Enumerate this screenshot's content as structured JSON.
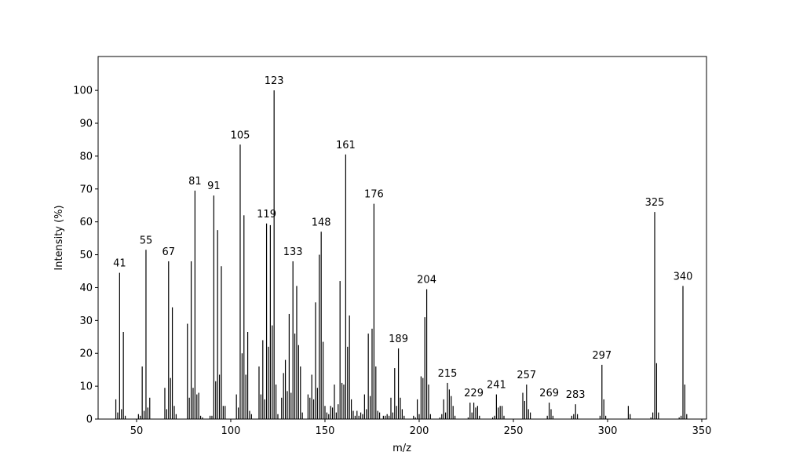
{
  "chart_data": {
    "type": "bar",
    "x_label": "m/z",
    "y_label": "Intensity (%)",
    "color": "#000000",
    "x": [
      39,
      40,
      41,
      42,
      43,
      44,
      51,
      52,
      53,
      54,
      55,
      56,
      57,
      65,
      66,
      67,
      68,
      69,
      70,
      71,
      77,
      78,
      79,
      80,
      81,
      82,
      83,
      84,
      85,
      89,
      90,
      91,
      92,
      93,
      94,
      95,
      96,
      97,
      103,
      104,
      105,
      106,
      107,
      108,
      109,
      110,
      111,
      115,
      116,
      117,
      118,
      119,
      120,
      121,
      122,
      123,
      124,
      125,
      127,
      128,
      129,
      130,
      131,
      132,
      133,
      134,
      135,
      136,
      137,
      138,
      141,
      142,
      143,
      144,
      145,
      146,
      147,
      148,
      149,
      150,
      151,
      152,
      153,
      154,
      155,
      156,
      157,
      158,
      159,
      160,
      161,
      162,
      163,
      164,
      165,
      166,
      167,
      168,
      169,
      170,
      171,
      172,
      173,
      174,
      175,
      176,
      177,
      178,
      179,
      181,
      182,
      183,
      184,
      185,
      186,
      187,
      188,
      189,
      190,
      191,
      192,
      197,
      198,
      199,
      200,
      201,
      202,
      203,
      204,
      205,
      206,
      211,
      212,
      213,
      214,
      215,
      216,
      217,
      218,
      219,
      226,
      227,
      228,
      229,
      230,
      231,
      232,
      239,
      240,
      241,
      242,
      243,
      244,
      245,
      255,
      256,
      257,
      258,
      259,
      268,
      269,
      270,
      271,
      281,
      282,
      283,
      284,
      296,
      297,
      298,
      299,
      311,
      312,
      323,
      324,
      325,
      326,
      327,
      338,
      339,
      340,
      341,
      342
    ],
    "values": [
      6,
      2,
      44.5,
      3,
      26.5,
      1,
      1.5,
      1,
      16,
      2.5,
      51.5,
      3.5,
      6.5,
      9.5,
      3,
      48,
      12.5,
      34,
      4,
      1.5,
      29,
      6.5,
      48,
      9.5,
      69.5,
      7.5,
      8,
      1,
      0.5,
      1,
      1,
      68,
      11.5,
      57.5,
      13.5,
      46.5,
      4,
      4,
      7.5,
      3.5,
      83.5,
      20,
      62,
      13.5,
      26.5,
      2.5,
      1.5,
      16,
      7.5,
      24,
      6,
      59.5,
      22,
      59,
      28.5,
      100,
      10.5,
      1.5,
      6.5,
      14,
      18,
      8.5,
      32,
      8,
      48,
      26,
      40.5,
      22.5,
      16,
      2,
      7.5,
      6.5,
      13.5,
      6,
      35.5,
      9.5,
      50,
      57,
      23.5,
      4,
      2,
      1.5,
      4,
      3.5,
      10.5,
      2,
      4.5,
      42,
      11,
      10.5,
      80.5,
      22,
      31.5,
      6,
      2.5,
      1,
      2.5,
      1,
      2,
      1.5,
      7.5,
      3,
      26,
      7,
      27.5,
      65.5,
      16,
      2.5,
      2,
      1,
      1,
      1.5,
      1,
      6.5,
      2,
      15.5,
      4,
      21.5,
      6.5,
      3,
      1,
      1,
      0.5,
      6,
      1.5,
      13,
      12.5,
      31,
      39.5,
      10.5,
      1.5,
      0.5,
      1.5,
      6,
      2,
      11,
      9,
      7,
      4,
      1,
      0.5,
      5,
      2,
      5,
      3.5,
      4,
      1,
      0.5,
      1,
      7.5,
      3.5,
      4,
      4,
      1,
      8,
      5.5,
      10.5,
      3,
      2,
      1,
      5,
      3,
      1,
      1,
      1.5,
      4.5,
      1.5,
      1,
      16.5,
      6,
      1,
      4,
      1.5,
      0.5,
      2,
      63,
      17,
      2,
      0.5,
      1,
      40.5,
      10.5,
      1.5
    ],
    "peak_labels": [
      41,
      55,
      67,
      81,
      91,
      105,
      119,
      123,
      133,
      148,
      161,
      176,
      189,
      204,
      215,
      229,
      241,
      257,
      269,
      283,
      297,
      325,
      340
    ],
    "xlim": [
      29.6,
      352.5
    ],
    "ylim": [
      0,
      110.3
    ],
    "xticks": [
      50,
      100,
      150,
      200,
      250,
      300,
      350
    ],
    "yticks": [
      0,
      10,
      20,
      30,
      40,
      50,
      60,
      70,
      80,
      90,
      100
    ]
  }
}
